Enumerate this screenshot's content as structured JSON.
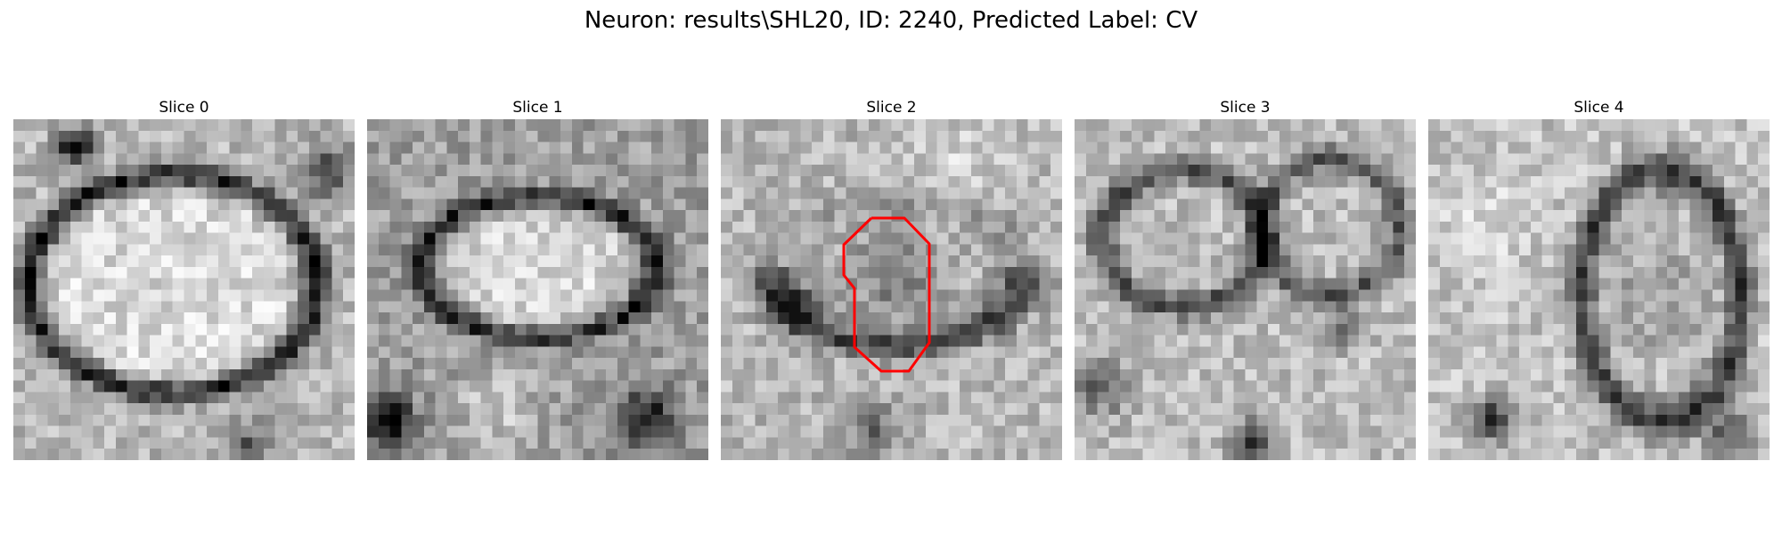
{
  "figure": {
    "title": "Neuron: results\\SHL20, ID: 2240, Predicted Label: CV"
  },
  "slices": [
    {
      "label": "Slice 0",
      "image": "grayscale-em-crop-cell-membrane"
    },
    {
      "label": "Slice 1",
      "image": "grayscale-em-crop-cell-membrane"
    },
    {
      "label": "Slice 2",
      "image": "grayscale-em-crop-with-contour",
      "contour_color": "#ff0000"
    },
    {
      "label": "Slice 3",
      "image": "grayscale-em-crop-textured"
    },
    {
      "label": "Slice 4",
      "image": "grayscale-em-crop-textured"
    }
  ]
}
